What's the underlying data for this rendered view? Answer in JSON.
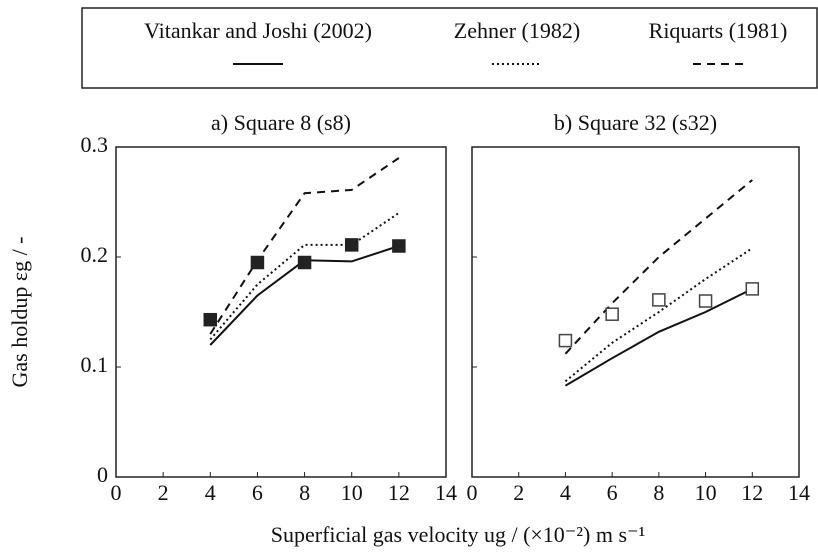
{
  "chart_data": [
    {
      "type": "line",
      "title": "a) Square 8 (s8)",
      "x_label": "Superficial gas velocity ug / (×10⁻²) m s⁻¹",
      "y_label": "Gas holdup εg / -",
      "x": [
        4,
        6,
        8,
        10,
        12
      ],
      "series": [
        {
          "name": "Vitankar and Joshi (2002)",
          "color": "#111111",
          "linestyle": "solid",
          "values": [
            0.12,
            0.165,
            0.197,
            0.196,
            0.21
          ]
        },
        {
          "name": "Zehner (1982)",
          "color": "#111111",
          "linestyle": "dotted",
          "values": [
            0.125,
            0.175,
            0.211,
            0.211,
            0.24
          ]
        },
        {
          "name": "Riquarts (1981)",
          "color": "#111111",
          "linestyle": "dashed",
          "values": [
            0.13,
            0.197,
            0.258,
            0.261,
            0.29
          ]
        },
        {
          "color": "#222222",
          "marker": "square",
          "filled": true,
          "values": [
            0.143,
            0.195,
            0.195,
            0.211,
            0.21
          ]
        }
      ],
      "xlim": [
        0,
        14
      ],
      "xticks": [
        0,
        2,
        4,
        6,
        8,
        10,
        12,
        14
      ],
      "ylim": [
        0,
        0.3
      ],
      "yticks": [
        0,
        0.1,
        0.2,
        0.3
      ]
    },
    {
      "type": "line",
      "title": "b) Square 32 (s32)",
      "x": [
        4,
        6,
        8,
        10,
        12
      ],
      "series": [
        {
          "color": "#111111",
          "linestyle": "solid",
          "values": [
            0.083,
            0.108,
            0.132,
            0.15,
            0.171
          ]
        },
        {
          "color": "#111111",
          "linestyle": "dotted",
          "values": [
            0.087,
            0.122,
            0.15,
            0.18,
            0.208
          ]
        },
        {
          "color": "#111111",
          "linestyle": "dashed",
          "values": [
            0.112,
            0.158,
            0.2,
            0.235,
            0.27
          ]
        },
        {
          "color": "#444444",
          "marker": "square",
          "filled": false,
          "values": [
            0.124,
            0.148,
            0.161,
            0.16,
            0.171
          ]
        }
      ],
      "xlim": [
        0,
        14
      ],
      "xticks": [
        0,
        2,
        4,
        6,
        8,
        10,
        12,
        14
      ],
      "ylim": [
        0,
        0.3
      ],
      "yticks": [
        0,
        0.1,
        0.2,
        0.3
      ]
    }
  ]
}
